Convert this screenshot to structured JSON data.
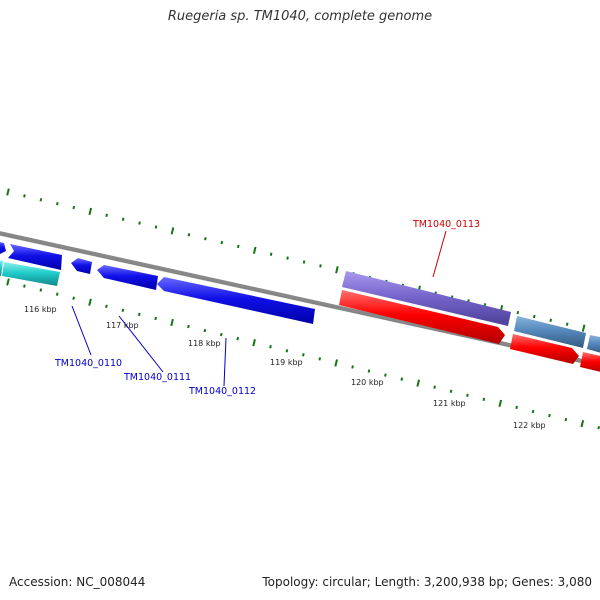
{
  "title": "Ruegeria sp. TM1040, complete genome",
  "footer": {
    "accession": "Accession: NC_008044",
    "summary": "Topology: circular; Length: 3,200,938 bp; Genes: 3,080"
  },
  "colors": {
    "forward_gene": "#1010e8",
    "reverse_gene": "#ff0000",
    "cyan_gene": "#22cccc",
    "purple_gene": "#7766cc",
    "steel_gene": "#5588bb",
    "tick": "#117711",
    "backbone": "#888888",
    "gene_label": "#0000cc",
    "highlight_label": "#cc0000"
  },
  "tick_labels": [
    "116 kbp",
    "117 kbp",
    "118 kbp",
    "119 kbp",
    "120 kbp",
    "121 kbp",
    "122 kbp"
  ],
  "genes": [
    {
      "id": "TM1040_0110",
      "label_color": "#0000cc"
    },
    {
      "id": "TM1040_0111",
      "label_color": "#0000cc"
    },
    {
      "id": "TM1040_0112",
      "label_color": "#0000cc"
    },
    {
      "id": "TM1040_0113",
      "label_color": "#cc0000"
    }
  ]
}
